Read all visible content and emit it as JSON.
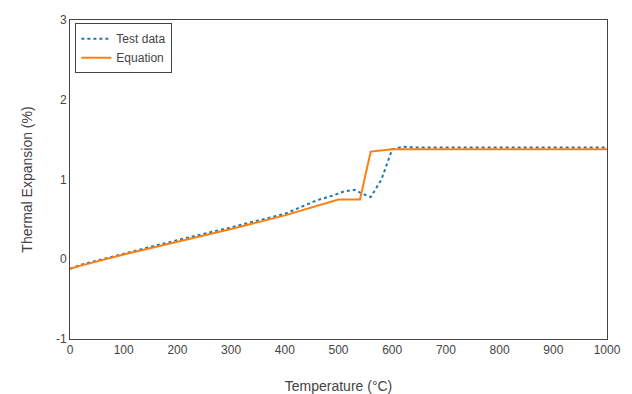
{
  "chart_data": {
    "type": "line",
    "xlabel": "Temperature (°C)",
    "ylabel": "Thermal Expansion (%)",
    "xlim": [
      0,
      1000
    ],
    "ylim": [
      -1,
      3
    ],
    "xticks": [
      0,
      100,
      200,
      300,
      400,
      500,
      600,
      700,
      800,
      900,
      1000
    ],
    "yticks": [
      -1,
      0,
      1,
      2,
      3
    ],
    "grid": false,
    "legend": "upper left",
    "series": [
      {
        "name": "Test data",
        "line_style": "dotted",
        "x": [
          0,
          20,
          100,
          200,
          300,
          400,
          460,
          490,
          510,
          530,
          545,
          560,
          580,
          600,
          620,
          650,
          700,
          800,
          900,
          1000
        ],
        "values": [
          -0.12,
          -0.07,
          0.07,
          0.24,
          0.4,
          0.57,
          0.74,
          0.8,
          0.85,
          0.87,
          0.82,
          0.78,
          1.0,
          1.38,
          1.41,
          1.4,
          1.4,
          1.4,
          1.4,
          1.4
        ]
      },
      {
        "name": "Equation",
        "line_style": "solid",
        "x": [
          0,
          20,
          100,
          200,
          300,
          400,
          500,
          540,
          560,
          600,
          650,
          700,
          800,
          900,
          1000
        ],
        "values": [
          -0.12,
          -0.08,
          0.06,
          0.22,
          0.38,
          0.55,
          0.75,
          0.75,
          1.35,
          1.38,
          1.38,
          1.38,
          1.38,
          1.38,
          1.38
        ]
      }
    ]
  }
}
